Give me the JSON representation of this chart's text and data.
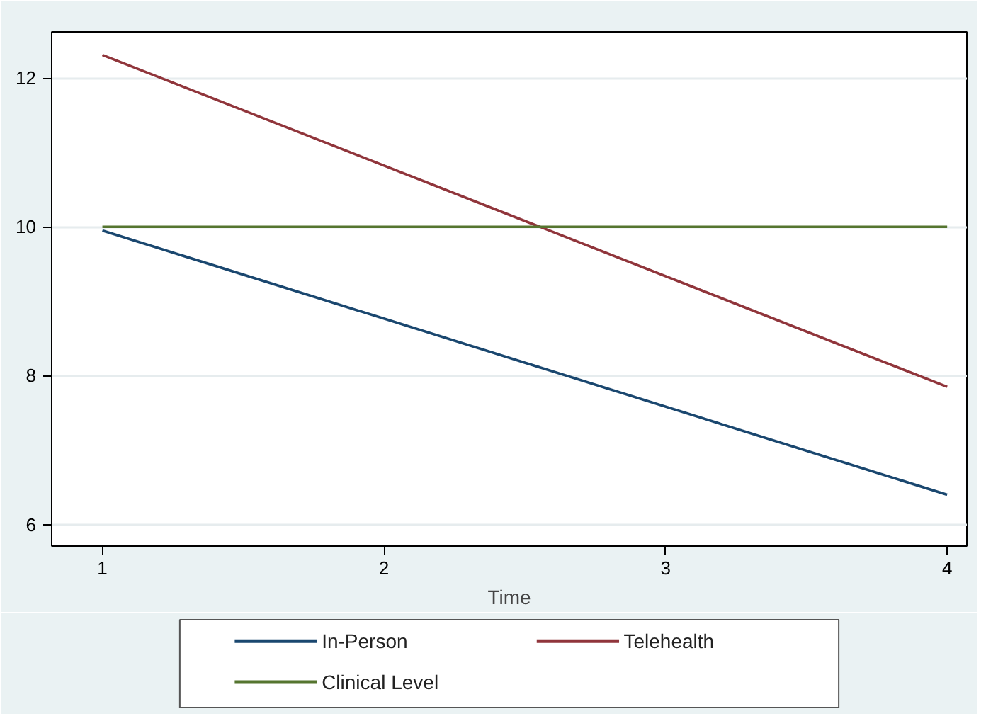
{
  "chart_data": {
    "type": "line",
    "xlabel": "Time",
    "x": [
      1,
      4
    ],
    "series": [
      {
        "name": "In-Person",
        "color": "#1a476f",
        "values": [
          9.95,
          6.4
        ]
      },
      {
        "name": "Telehealth",
        "color": "#90353b",
        "values": [
          12.31,
          7.85
        ]
      },
      {
        "name": "Clinical Level",
        "color": "#55752f",
        "values": [
          10,
          10
        ]
      }
    ],
    "xlim": [
      0.82,
      4.07
    ],
    "ylim": [
      5.71,
      12.62
    ],
    "xticks": [
      1,
      2,
      3,
      4
    ],
    "yticks": [
      6,
      8,
      10,
      12
    ],
    "grid": "y",
    "legend": "bottom",
    "marker": "none",
    "line_style": "solid"
  }
}
